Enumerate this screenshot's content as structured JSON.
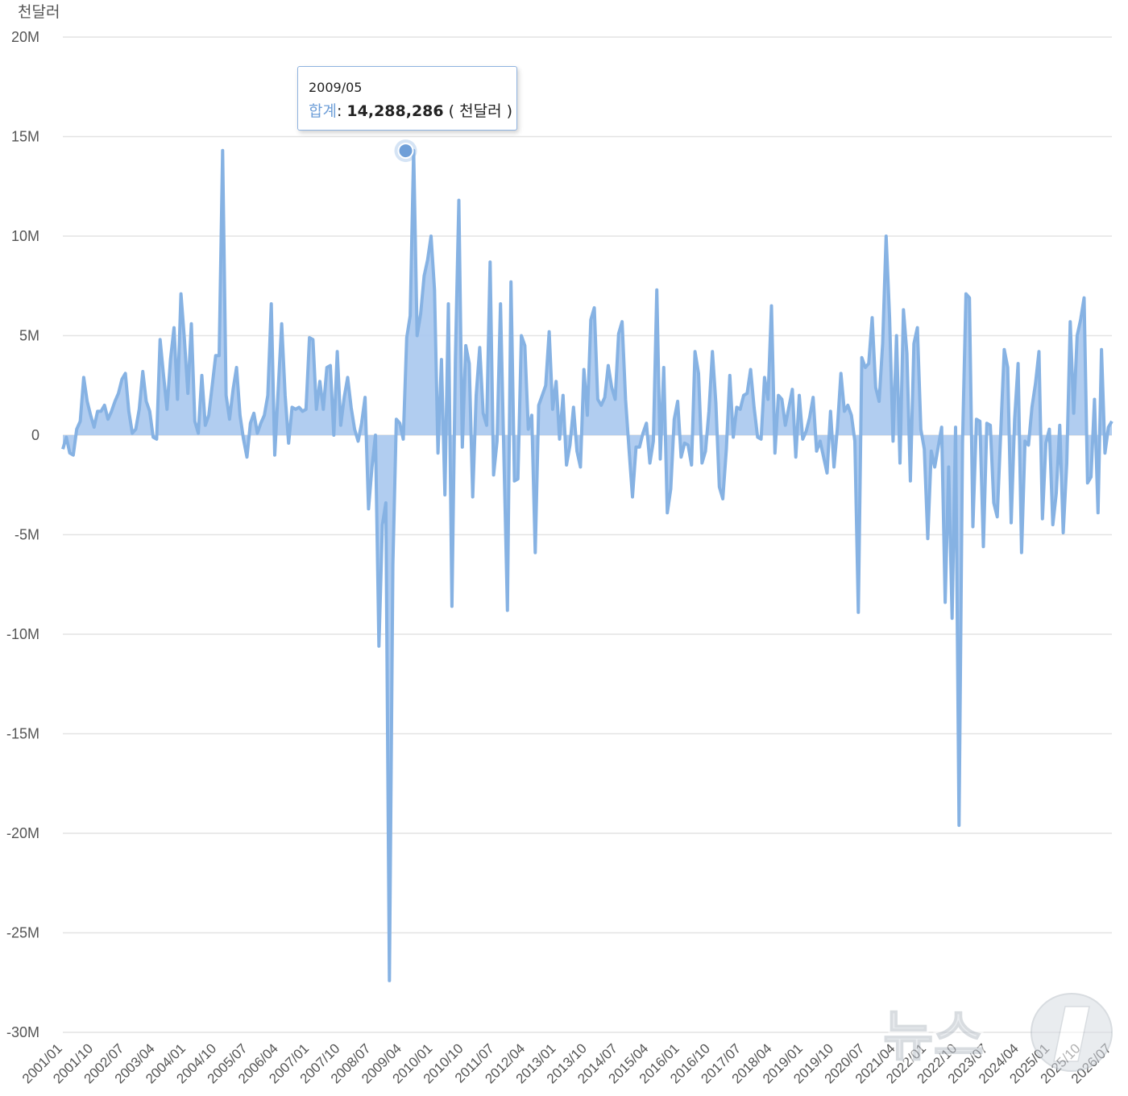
{
  "unit_label": "천달러",
  "tooltip": {
    "date": "2009/05",
    "series_name": "합계",
    "value": "14,288,286",
    "unit": "( 천달러 )"
  },
  "watermark": "뉴스1",
  "colors": {
    "line": "#86b2e3",
    "fill": "#a9c8ee",
    "grid": "#e3e3e3",
    "axis_text": "#555555"
  },
  "chart_data": {
    "type": "area",
    "ylabel": "천달러",
    "ylim": [
      -30000000,
      20000000
    ],
    "yticks": [
      20000000,
      15000000,
      10000000,
      5000000,
      0,
      -5000000,
      -10000000,
      -15000000,
      -20000000,
      -25000000,
      -30000000
    ],
    "ytick_labels": [
      "20M",
      "15M",
      "10M",
      "5M",
      "0",
      "-5M",
      "-10M",
      "-15M",
      "-20M",
      "-25M",
      "-30M"
    ],
    "xtick_labels": [
      "2001/01",
      "2001/10",
      "2002/07",
      "2003/04",
      "2004/01",
      "2004/10",
      "2005/07",
      "2006/04",
      "2007/01",
      "2007/10",
      "2008/07",
      "2009/04",
      "2010/01",
      "2010/10",
      "2011/07",
      "2012/04",
      "2013/01",
      "2013/10",
      "2014/07",
      "2015/04",
      "2016/01",
      "2016/10",
      "2017/07",
      "2018/04",
      "2019/01",
      "2019/10",
      "2020/07",
      "2021/04",
      "2022/01",
      "2022/10",
      "2023/07",
      "2024/04",
      "2025/01",
      "2025/10",
      "2026/07"
    ],
    "x_start": "2001/01",
    "x_end": "2026/07",
    "highlight": {
      "x": "2009/05",
      "y": 14288286
    },
    "series": [
      {
        "values": [
          -700000,
          -100000,
          -900000,
          -1000000,
          300000,
          700000,
          2900000,
          1700000,
          1000000,
          400000,
          1200000,
          1200000,
          1500000,
          800000,
          1200000,
          1700000,
          2100000,
          2800000,
          3100000,
          1200000,
          100000,
          300000,
          1300000,
          3200000,
          1700000,
          1200000,
          -100000,
          -200000,
          4800000,
          3000000,
          1300000,
          3800000,
          5400000,
          1800000,
          7100000,
          4800000,
          2100000,
          5600000,
          700000,
          100000,
          3000000,
          500000,
          1000000,
          2500000,
          4000000,
          4000000,
          14300000,
          2000000,
          800000,
          2300000,
          3400000,
          1000000,
          -200000,
          -1100000,
          600000,
          1100000,
          100000,
          600000,
          1000000,
          2000000,
          6600000,
          -1000000,
          2300000,
          5600000,
          2000000,
          -400000,
          1400000,
          1300000,
          1400000,
          1200000,
          1300000,
          4900000,
          4800000,
          1300000,
          2700000,
          1300000,
          3400000,
          3500000,
          0,
          4200000,
          500000,
          1900000,
          2900000,
          1400000,
          300000,
          -300000,
          600000,
          1900000,
          -3700000,
          -1600000,
          0,
          -10600000,
          -4500000,
          -3400000,
          -27400000,
          -6500000,
          800000,
          600000,
          -200000,
          4900000,
          6000000,
          14300000,
          5000000,
          6100000,
          8000000,
          8800000,
          10000000,
          7300000,
          -900000,
          3800000,
          -3000000,
          6600000,
          -8600000,
          3800000,
          11800000,
          -600000,
          4500000,
          3600000,
          -3100000,
          2000000,
          4400000,
          1100000,
          500000,
          8700000,
          -2000000,
          -300000,
          6600000,
          -1200000,
          -8800000,
          7700000,
          -2300000,
          -2200000,
          5000000,
          4500000,
          300000,
          1000000,
          -5900000,
          1500000,
          2000000,
          2500000,
          5200000,
          1300000,
          2700000,
          -200000,
          2000000,
          -1500000,
          -500000,
          1400000,
          -800000,
          -1600000,
          3300000,
          1000000,
          5800000,
          6400000,
          1800000,
          1500000,
          1900000,
          3500000,
          2400000,
          1800000,
          5100000,
          5700000,
          1800000,
          -700000,
          -3100000,
          -600000,
          -600000,
          100000,
          600000,
          -1400000,
          -300000,
          7300000,
          -1200000,
          3400000,
          -3900000,
          -2700000,
          800000,
          1700000,
          -1100000,
          -400000,
          -500000,
          -1500000,
          4200000,
          3100000,
          -1400000,
          -800000,
          1200000,
          4200000,
          1600000,
          -2600000,
          -3200000,
          -700000,
          3000000,
          -100000,
          1400000,
          1300000,
          2000000,
          2100000,
          3300000,
          1400000,
          -100000,
          -200000,
          2900000,
          1800000,
          6500000,
          -900000,
          2000000,
          1800000,
          500000,
          1400000,
          2300000,
          -1100000,
          2000000,
          -200000,
          200000,
          900000,
          1900000,
          -800000,
          -300000,
          -1100000,
          -1900000,
          1200000,
          -1600000,
          400000,
          3100000,
          1200000,
          1500000,
          1000000,
          -300000,
          -8900000,
          3900000,
          3400000,
          3600000,
          5900000,
          2400000,
          1700000,
          4600000,
          10000000,
          5900000,
          -300000,
          5000000,
          -1400000,
          6300000,
          4100000,
          -2300000,
          4600000,
          5400000,
          300000,
          -700000,
          -5200000,
          -800000,
          -1600000,
          -600000,
          400000,
          -8400000,
          -1600000,
          -9200000,
          400000,
          -19600000,
          -400000,
          7100000,
          6900000,
          -4600000,
          800000,
          700000,
          -5600000,
          600000,
          500000,
          -3400000,
          -4100000,
          100000,
          4300000,
          3400000,
          -4400000,
          800000,
          3600000,
          -5900000,
          -300000,
          -500000,
          1400000,
          2600000,
          4200000,
          -4200000,
          -400000,
          300000,
          -4500000,
          -2900000,
          500000,
          -4900000,
          -1400000,
          5700000,
          1100000,
          5000000,
          5800000,
          6900000,
          -2400000,
          -2100000,
          1800000,
          -3900000,
          4300000,
          -900000,
          400000,
          700000
        ]
      }
    ]
  }
}
